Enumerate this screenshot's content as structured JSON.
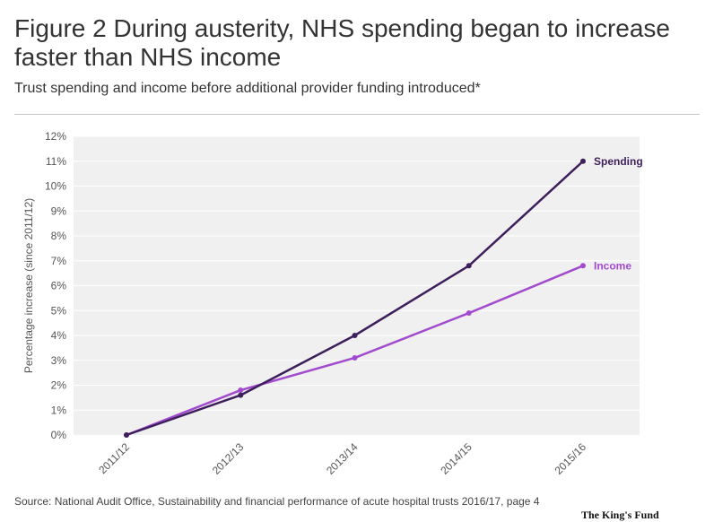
{
  "header": {
    "title": "Figure 2 During austerity, NHS spending began to increase faster than NHS income",
    "subtitle": "Trust spending and income before additional provider funding introduced*"
  },
  "footer": {
    "source": "Source: National Audit Office, Sustainability and financial performance of acute hospital trusts 2016/17, page 4",
    "brand": "The King's Fund"
  },
  "colors": {
    "spending": "#3d1f5c",
    "income": "#a24bcf",
    "plot_background": "#f0f0f0",
    "gridline": "#ffffff",
    "text": "#333333"
  },
  "chart_data": {
    "type": "line",
    "title": "",
    "xlabel": "",
    "ylabel": "Percentage increase (since 2011/12)",
    "categories": [
      "2011/12",
      "2012/13",
      "2013/14",
      "2014/15",
      "2015/16"
    ],
    "ylim": [
      0,
      12
    ],
    "yticks": [
      0,
      1,
      2,
      3,
      4,
      5,
      6,
      7,
      8,
      9,
      10,
      11,
      12
    ],
    "ytick_suffix": "%",
    "grid": true,
    "series": [
      {
        "name": "Spending",
        "values": [
          0,
          1.6,
          4.0,
          6.8,
          11.0
        ],
        "color": "#3d1f5c"
      },
      {
        "name": "Income",
        "values": [
          0,
          1.8,
          3.1,
          4.9,
          6.8
        ],
        "color": "#a24bcf"
      }
    ]
  }
}
